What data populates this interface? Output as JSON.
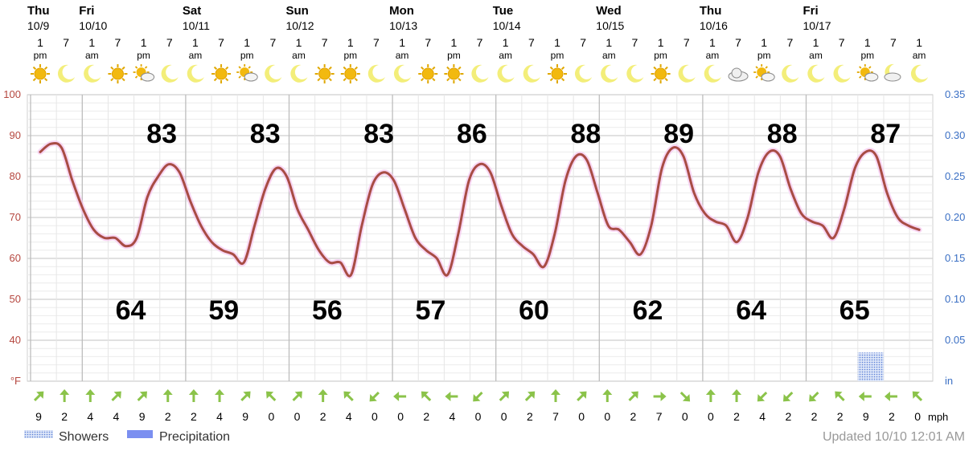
{
  "chart_data": {
    "type": "line",
    "days": [
      {
        "name": "Thu",
        "date": "10/9",
        "slot": 0
      },
      {
        "name": "Fri",
        "date": "10/10",
        "slot": 2
      },
      {
        "name": "Sat",
        "date": "10/11",
        "slot": 6
      },
      {
        "name": "Sun",
        "date": "10/12",
        "slot": 10
      },
      {
        "name": "Mon",
        "date": "10/13",
        "slot": 14
      },
      {
        "name": "Tue",
        "date": "10/14",
        "slot": 18
      },
      {
        "name": "Wed",
        "date": "10/15",
        "slot": 22
      },
      {
        "name": "Thu",
        "date": "10/16",
        "slot": 26
      },
      {
        "name": "Fri",
        "date": "10/17",
        "slot": 30
      }
    ],
    "time_slots": [
      {
        "hour": "1",
        "ampm": "pm",
        "icon": "sun-icon"
      },
      {
        "hour": "7",
        "ampm": "",
        "icon": "moon-icon"
      },
      {
        "hour": "1",
        "ampm": "am",
        "icon": "moon-icon"
      },
      {
        "hour": "7",
        "ampm": "",
        "icon": "sun-icon"
      },
      {
        "hour": "1",
        "ampm": "pm",
        "icon": "partly-cloudy-icon"
      },
      {
        "hour": "7",
        "ampm": "",
        "icon": "moon-icon"
      },
      {
        "hour": "1",
        "ampm": "am",
        "icon": "moon-icon"
      },
      {
        "hour": "7",
        "ampm": "",
        "icon": "sun-icon"
      },
      {
        "hour": "1",
        "ampm": "pm",
        "icon": "partly-cloudy-icon"
      },
      {
        "hour": "7",
        "ampm": "",
        "icon": "moon-icon"
      },
      {
        "hour": "1",
        "ampm": "am",
        "icon": "moon-icon"
      },
      {
        "hour": "7",
        "ampm": "",
        "icon": "sun-icon"
      },
      {
        "hour": "1",
        "ampm": "pm",
        "icon": "sun-icon"
      },
      {
        "hour": "7",
        "ampm": "",
        "icon": "moon-icon"
      },
      {
        "hour": "1",
        "ampm": "am",
        "icon": "moon-icon"
      },
      {
        "hour": "7",
        "ampm": "",
        "icon": "sun-icon"
      },
      {
        "hour": "1",
        "ampm": "pm",
        "icon": "sun-icon"
      },
      {
        "hour": "7",
        "ampm": "",
        "icon": "moon-icon"
      },
      {
        "hour": "1",
        "ampm": "am",
        "icon": "moon-icon"
      },
      {
        "hour": "7",
        "ampm": "",
        "icon": "moon-icon"
      },
      {
        "hour": "1",
        "ampm": "pm",
        "icon": "sun-icon"
      },
      {
        "hour": "7",
        "ampm": "",
        "icon": "moon-icon"
      },
      {
        "hour": "1",
        "ampm": "am",
        "icon": "moon-icon"
      },
      {
        "hour": "7",
        "ampm": "",
        "icon": "moon-icon"
      },
      {
        "hour": "1",
        "ampm": "pm",
        "icon": "sun-icon"
      },
      {
        "hour": "7",
        "ampm": "",
        "icon": "moon-icon"
      },
      {
        "hour": "1",
        "ampm": "am",
        "icon": "moon-icon"
      },
      {
        "hour": "7",
        "ampm": "",
        "icon": "cloud-icon"
      },
      {
        "hour": "1",
        "ampm": "pm",
        "icon": "partly-cloudy-icon"
      },
      {
        "hour": "7",
        "ampm": "",
        "icon": "moon-icon"
      },
      {
        "hour": "1",
        "ampm": "am",
        "icon": "moon-icon"
      },
      {
        "hour": "7",
        "ampm": "",
        "icon": "moon-icon"
      },
      {
        "hour": "1",
        "ampm": "pm",
        "icon": "partly-cloudy-icon"
      },
      {
        "hour": "7",
        "ampm": "",
        "icon": "cloud-night-icon"
      },
      {
        "hour": "1",
        "ampm": "am",
        "icon": "moon-icon"
      }
    ],
    "temperature": [
      86,
      88,
      87,
      79,
      72,
      67,
      65,
      65,
      63,
      65,
      75,
      80,
      83,
      81,
      74,
      68,
      64,
      62,
      61,
      59,
      68,
      77,
      82,
      80,
      72,
      67,
      62,
      59,
      59,
      56,
      68,
      78,
      81,
      79,
      72,
      65,
      62,
      60,
      56,
      66,
      79,
      83,
      81,
      73,
      66,
      63,
      61,
      58,
      66,
      79,
      85,
      84,
      76,
      68,
      67,
      64,
      61,
      68,
      82,
      87,
      85,
      76,
      71,
      69,
      68,
      64,
      70,
      81,
      86,
      85,
      77,
      71,
      69,
      68,
      65,
      72,
      82,
      86,
      85,
      76,
      70,
      68,
      67
    ],
    "highs": [
      {
        "value": "83",
        "slot": 4.7
      },
      {
        "value": "83",
        "slot": 8.7
      },
      {
        "value": "83",
        "slot": 13.1
      },
      {
        "value": "86",
        "slot": 16.7
      },
      {
        "value": "88",
        "slot": 21.1
      },
      {
        "value": "89",
        "slot": 24.7
      },
      {
        "value": "88",
        "slot": 28.7
      },
      {
        "value": "87",
        "slot": 32.7
      }
    ],
    "lows": [
      {
        "value": "64",
        "slot": 3.5
      },
      {
        "value": "59",
        "slot": 7.1
      },
      {
        "value": "56",
        "slot": 11.1
      },
      {
        "value": "57",
        "slot": 15.1
      },
      {
        "value": "60",
        "slot": 19.1
      },
      {
        "value": "62",
        "slot": 23.5
      },
      {
        "value": "64",
        "slot": 27.5
      },
      {
        "value": "65",
        "slot": 31.5
      }
    ],
    "y_left": {
      "ticks": [
        "100",
        "90",
        "80",
        "70",
        "60",
        "50",
        "40"
      ],
      "unit": "°F",
      "min": 30,
      "max": 100,
      "color": "#b5473f"
    },
    "y_right": {
      "ticks": [
        "0.35",
        "0.30",
        "0.25",
        "0.20",
        "0.15",
        "0.10",
        "0.05"
      ],
      "unit": "in",
      "min": 0,
      "max": 0.35,
      "color": "#3a6fc4"
    },
    "showers": [
      {
        "slot_start": 32.0,
        "slot_end": 33.0,
        "amount": 0.035
      }
    ],
    "wind": {
      "speeds": [
        "9",
        "2",
        "4",
        "4",
        "9",
        "2",
        "2",
        "4",
        "9",
        "0",
        "0",
        "2",
        "4",
        "0",
        "0",
        "2",
        "4",
        "0",
        "0",
        "2",
        "7",
        "0",
        "0",
        "2",
        "7",
        "0",
        "0",
        "2",
        "4",
        "2",
        "2",
        "2",
        "9",
        "2",
        "0"
      ],
      "directions": [
        225,
        180,
        180,
        225,
        225,
        180,
        180,
        180,
        225,
        135,
        225,
        180,
        135,
        45,
        90,
        135,
        90,
        45,
        225,
        225,
        180,
        225,
        180,
        225,
        270,
        315,
        180,
        180,
        45,
        45,
        45,
        135,
        90,
        90,
        135
      ],
      "unit": "mph",
      "arrow_color": "#8bc34a"
    },
    "line_color": "#a84c44",
    "legend": [
      {
        "label": "Showers",
        "swatch": "dotted-blue"
      },
      {
        "label": "Precipitation",
        "swatch": "solid-blue"
      }
    ],
    "updated": "Updated 10/10 12:01 AM",
    "grid": true
  }
}
